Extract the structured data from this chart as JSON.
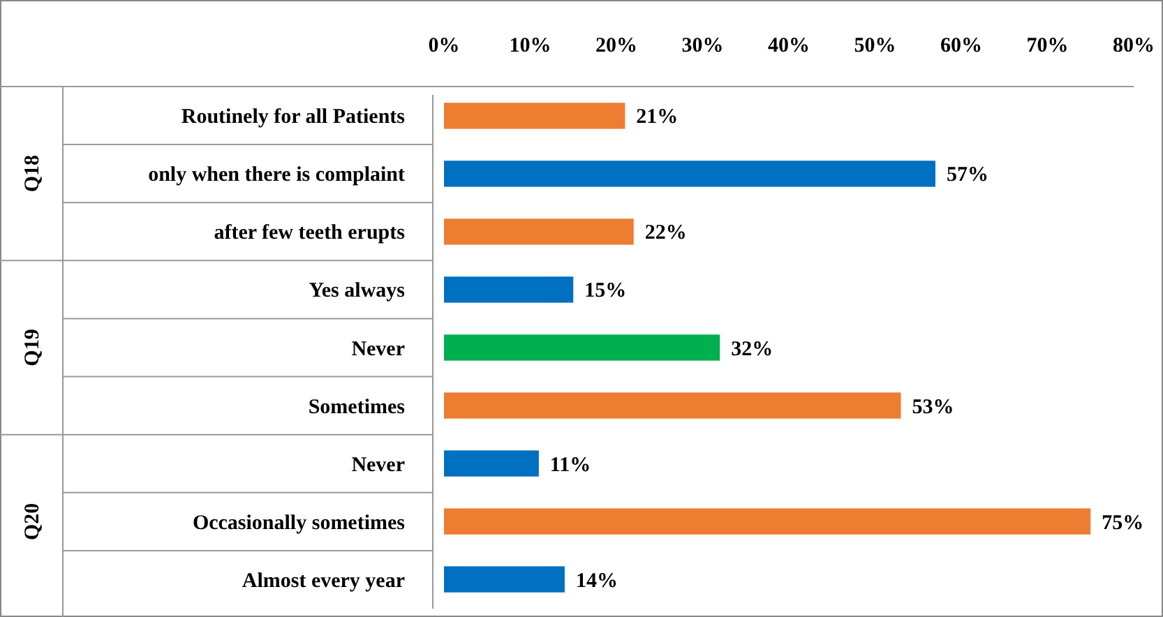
{
  "chart_data": {
    "type": "bar",
    "orientation": "horizontal",
    "categories": [
      "Routinely for all Patients",
      "only when there is complaint",
      "after few teeth erupts",
      "Yes always",
      "Never",
      "Sometimes",
      "Never",
      "Occasionally sometimes",
      "Almost every year"
    ],
    "values": [
      21,
      57,
      22,
      15,
      32,
      53,
      11,
      75,
      14
    ],
    "colors": [
      "#ed7d31",
      "#0070c0",
      "#ed7d31",
      "#0070c0",
      "#00b050",
      "#ed7d31",
      "#0070c0",
      "#ed7d31",
      "#0070c0"
    ],
    "value_labels": [
      "21%",
      "57%",
      "22%",
      "15%",
      "32%",
      "53%",
      "11%",
      "75%",
      "14%"
    ],
    "xlim": [
      0,
      80
    ],
    "xticks": [
      {
        "value": 0,
        "label": "0%"
      },
      {
        "value": 10,
        "label": "10%"
      },
      {
        "value": 20,
        "label": "20%"
      },
      {
        "value": 30,
        "label": "30%"
      },
      {
        "value": 40,
        "label": "40%"
      },
      {
        "value": 50,
        "label": "50%"
      },
      {
        "value": 60,
        "label": "60%"
      },
      {
        "value": 70,
        "label": "70%"
      },
      {
        "value": 80,
        "label": "80%"
      }
    ],
    "annotations": [
      "Q18",
      "Q19",
      "Q20"
    ],
    "grid": false
  }
}
